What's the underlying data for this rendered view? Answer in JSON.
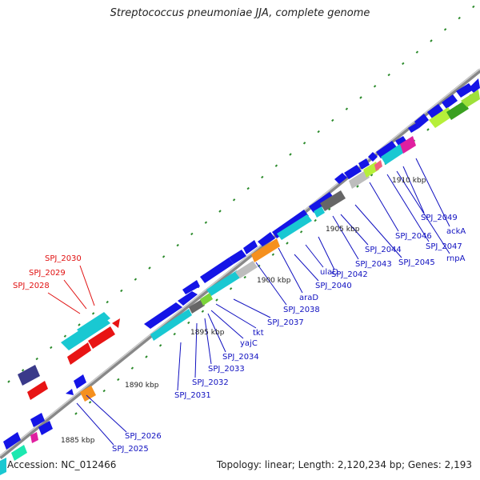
{
  "title": "Streptococcus pneumoniae JJA, complete genome",
  "footer": {
    "accession": "Accession: NC_012466",
    "topology": "Topology: linear; Length: 2,120,234 bp; Genes: 2,193"
  },
  "scale_labels": [
    "1885 kbp",
    "1890 kbp",
    "1895 kbp",
    "1900 kbp",
    "1905 kbp",
    "1910 kbp"
  ],
  "upper_labels": [
    "SPJ_2030",
    "SPJ_2029",
    "SPJ_2028"
  ],
  "lower_labels": [
    "SPJ_2026",
    "SPJ_2025"
  ],
  "right_labels": [
    "SPJ_2031",
    "SPJ_2032",
    "SPJ_2033",
    "SPJ_2034",
    "yajC",
    "tkt",
    "SPJ_2037",
    "SPJ_2038",
    "araD",
    "SPJ_2040",
    "ulaD",
    "SPJ_2042",
    "SPJ_2043",
    "SPJ_2044",
    "SPJ_2045",
    "SPJ_2046",
    "SPJ_2047",
    "rnpA",
    "ackA",
    "SPJ_2049"
  ],
  "colors": {
    "label_red": "#e01010",
    "label_blue": "#1010c0",
    "gene_blue": "#1414e6",
    "cyan": "#19c8d2",
    "red": "#e81414",
    "tick_green": "#2a8a2a"
  }
}
